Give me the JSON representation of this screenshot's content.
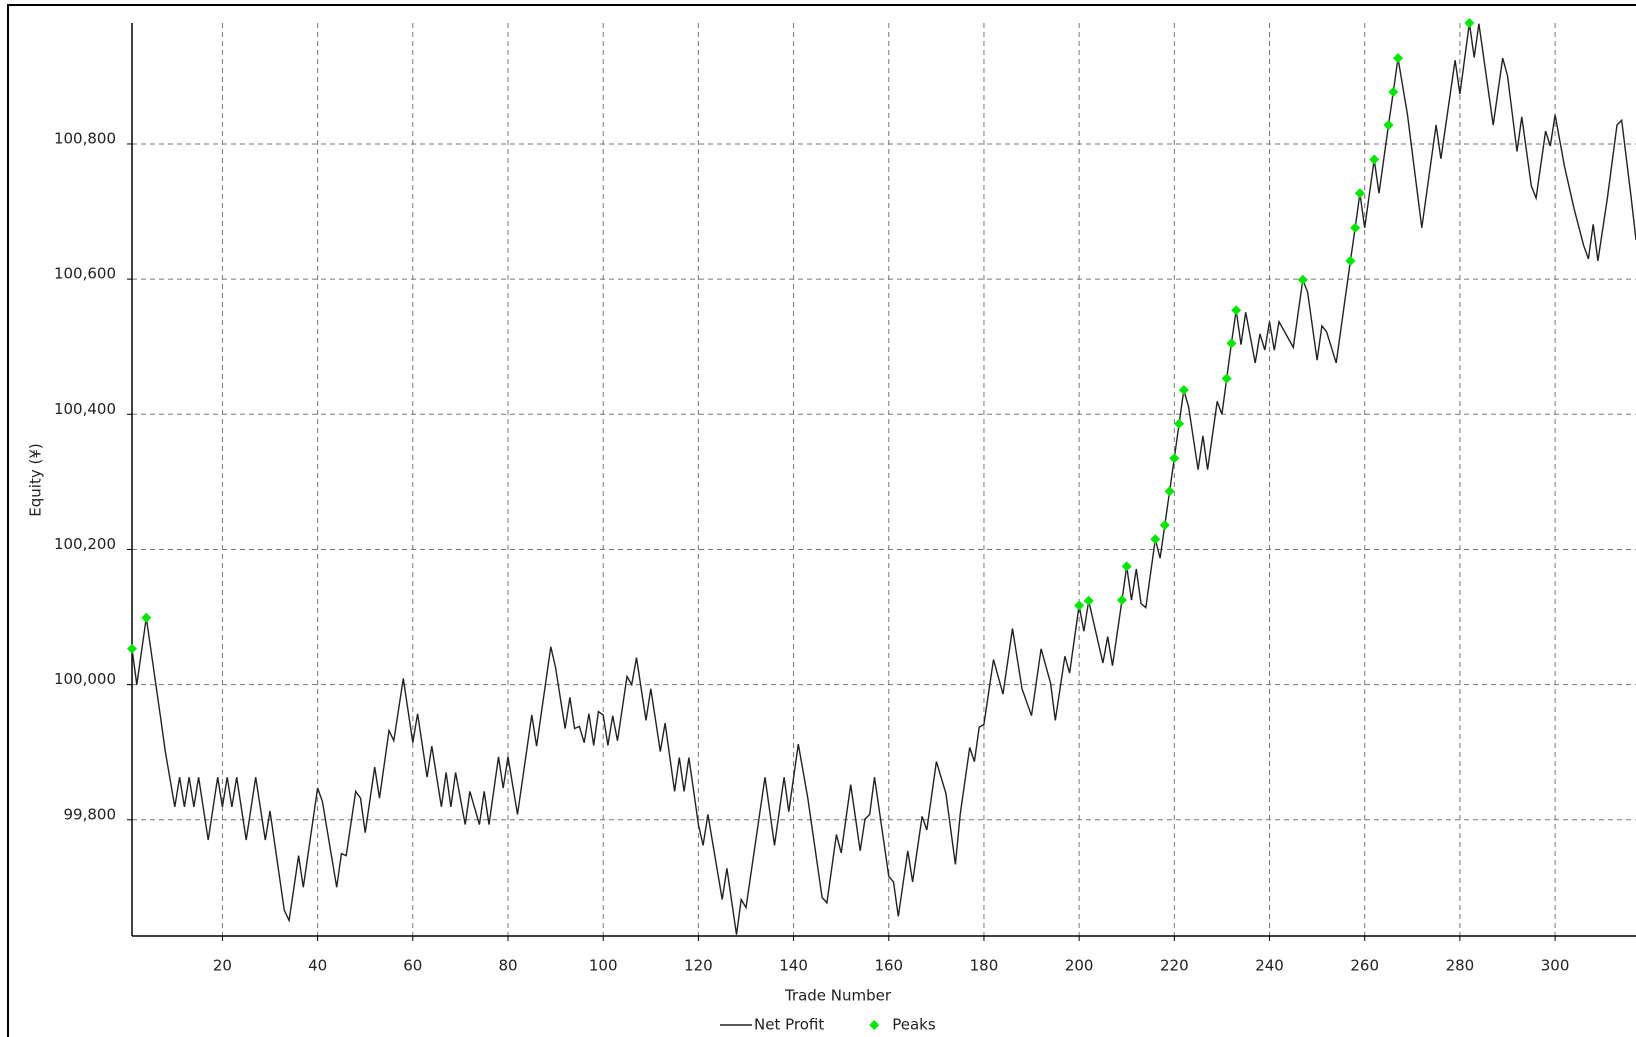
{
  "chart_data": {
    "type": "line",
    "x_label": "Trade Number",
    "y_label": "Equity (¥)",
    "xlim": [
      1,
      317
    ],
    "ylim": [
      99628,
      100979
    ],
    "xticks": [
      20,
      40,
      60,
      80,
      100,
      120,
      140,
      160,
      180,
      200,
      220,
      240,
      260,
      280,
      300
    ],
    "yticks": [
      {
        "value": 99800,
        "label": "99,800"
      },
      {
        "value": 100000,
        "label": "100,000"
      },
      {
        "value": 100200,
        "label": "100,200"
      },
      {
        "value": 100400,
        "label": "100,400"
      },
      {
        "value": 100600,
        "label": "100,600"
      },
      {
        "value": 100800,
        "label": "100,800"
      }
    ],
    "grid": true,
    "legend": "bottom",
    "series": [
      {
        "name": "Net Profit",
        "type": "line",
        "color": "#222222",
        "x": [
          1,
          2,
          4,
          7,
          8,
          10,
          11,
          12,
          13,
          14,
          15,
          17,
          19,
          20,
          21,
          22,
          23,
          25,
          27,
          29,
          30,
          33,
          34,
          36,
          37,
          40,
          41,
          44,
          45,
          46,
          48,
          49,
          50,
          52,
          53,
          55,
          56,
          58,
          60,
          61,
          63,
          64,
          66,
          67,
          68,
          69,
          71,
          72,
          74,
          75,
          76,
          78,
          79,
          80,
          82,
          85,
          86,
          89,
          90,
          92,
          93,
          94,
          95,
          96,
          97,
          98,
          99,
          100,
          101,
          102,
          103,
          105,
          106,
          107,
          109,
          110,
          112,
          113,
          115,
          116,
          117,
          118,
          120,
          121,
          122,
          125,
          126,
          128,
          129,
          130,
          134,
          136,
          138,
          139,
          141,
          143,
          146,
          147,
          149,
          150,
          152,
          154,
          155,
          156,
          157,
          160,
          161,
          162,
          164,
          165,
          167,
          168,
          170,
          172,
          174,
          175,
          177,
          178,
          179,
          180,
          182,
          184,
          186,
          188,
          190,
          192,
          194,
          195,
          197,
          198,
          200,
          201,
          202,
          205,
          206,
          207,
          209,
          210,
          211,
          212,
          213,
          214,
          216,
          217,
          218,
          219,
          220,
          221,
          222,
          223,
          225,
          226,
          227,
          229,
          230,
          231,
          232,
          233,
          234,
          235,
          237,
          238,
          239,
          240,
          241,
          242,
          245,
          247,
          248,
          250,
          251,
          252,
          254,
          257,
          258,
          259,
          260,
          262,
          263,
          265,
          266,
          267,
          269,
          272,
          275,
          276,
          279,
          280,
          282,
          283,
          284,
          287,
          289,
          290,
          292,
          293,
          295,
          296,
          298,
          299,
          300,
          302,
          304,
          306,
          307,
          308,
          309,
          311,
          313,
          314,
          316,
          317
        ],
        "values": [
          100053,
          100000,
          100099,
          99951,
          99901,
          99819,
          99863,
          99819,
          99863,
          99819,
          99863,
          99770,
          99863,
          99819,
          99863,
          99819,
          99863,
          99770,
          99863,
          99770,
          99813,
          99666,
          99651,
          99747,
          99700,
          99847,
          99827,
          99700,
          99750,
          99747,
          99842,
          99832,
          99781,
          99878,
          99832,
          99932,
          99917,
          100009,
          99914,
          99957,
          99863,
          99909,
          99819,
          99870,
          99819,
          99870,
          99793,
          99842,
          99793,
          99842,
          99793,
          99893,
          99847,
          99893,
          99808,
          99955,
          99909,
          100056,
          100025,
          99935,
          99981,
          99935,
          99938,
          99914,
          99957,
          99910,
          99960,
          99955,
          99910,
          99954,
          99917,
          100012,
          100000,
          100040,
          99947,
          99994,
          99901,
          99943,
          99842,
          99892,
          99842,
          99892,
          99793,
          99762,
          99808,
          99682,
          99728,
          99630,
          99682,
          99670,
          99863,
          99762,
          99863,
          99812,
          99912,
          99832,
          99685,
          99677,
          99778,
          99751,
          99852,
          99754,
          99801,
          99808,
          99863,
          99716,
          99708,
          99657,
          99754,
          99708,
          99805,
          99785,
          99886,
          99839,
          99734,
          99808,
          99907,
          99886,
          99937,
          99941,
          100037,
          99986,
          100083,
          99994,
          99954,
          100053,
          100002,
          99947,
          100042,
          100017,
          100117,
          100079,
          100124,
          100032,
          100071,
          100028,
          100125,
          100175,
          100125,
          100171,
          100120,
          100114,
          100215,
          100187,
          100236,
          100286,
          100335,
          100386,
          100436,
          100411,
          100318,
          100368,
          100318,
          100419,
          100400,
          100453,
          100505,
          100554,
          100503,
          100551,
          100476,
          100519,
          100495,
          100537,
          100495,
          100537,
          100499,
          100599,
          100581,
          100480,
          100531,
          100522,
          100476,
          100627,
          100676,
          100727,
          100676,
          100777,
          100727,
          100828,
          100877,
          100927,
          100843,
          100676,
          100828,
          100778,
          100924,
          100874,
          100979,
          100928,
          100978,
          100828,
          100927,
          100901,
          100789,
          100840,
          100738,
          100720,
          100819,
          100797,
          100843,
          100766,
          100704,
          100650,
          100630,
          100681,
          100627,
          100720,
          100828,
          100835,
          100720,
          100658
        ]
      },
      {
        "name": "Peaks",
        "type": "scatter",
        "color": "#00e600",
        "x": [
          1,
          4,
          200,
          202,
          209,
          210,
          216,
          218,
          219,
          220,
          221,
          222,
          231,
          232,
          233,
          247,
          257,
          258,
          259,
          262,
          265,
          266,
          267,
          282
        ],
        "values": [
          100053,
          100099,
          100117,
          100124,
          100125,
          100175,
          100215,
          100236,
          100286,
          100335,
          100386,
          100436,
          100453,
          100505,
          100554,
          100599,
          100627,
          100676,
          100727,
          100777,
          100828,
          100877,
          100927,
          100979
        ]
      }
    ]
  }
}
